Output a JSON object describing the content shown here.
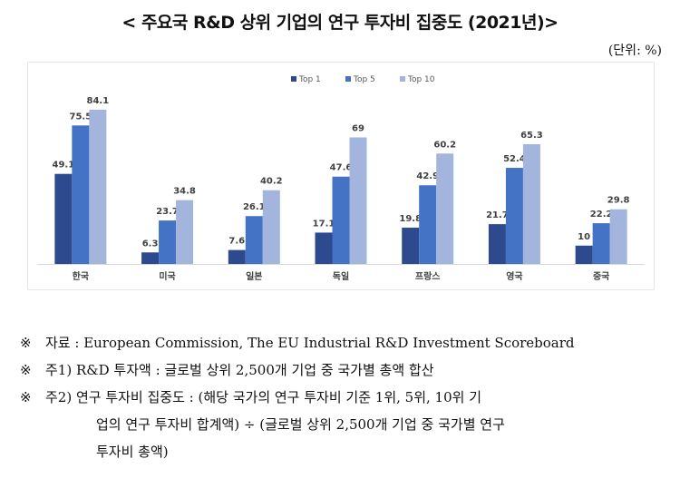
{
  "title": "< 주요국 R&D 상위 기업의 연구 투자비 집중도 (2021년)>",
  "unit": "(단위: %)",
  "chart_data": {
    "type": "bar",
    "categories": [
      "한국",
      "미국",
      "일본",
      "독일",
      "프랑스",
      "영국",
      "중국"
    ],
    "series": [
      {
        "name": "Top 1",
        "color": "#2e4a8e",
        "values": [
          49.1,
          6.3,
          7.6,
          17.1,
          19.8,
          21.7,
          10
        ]
      },
      {
        "name": "Top 5",
        "color": "#4472c4",
        "values": [
          75.5,
          23.7,
          26.1,
          47.6,
          42.9,
          52.4,
          22.2
        ]
      },
      {
        "name": "Top 10",
        "color": "#a3b5dc",
        "values": [
          84.1,
          34.8,
          40.2,
          69,
          60.2,
          65.3,
          29.8
        ]
      }
    ],
    "ylim": [
      0,
      90
    ],
    "legend": "top-center",
    "grid": false
  },
  "notes": [
    {
      "mark": "※",
      "label": "자료 ",
      "text": ": European Commission, The EU Industrial R&D Investment Scoreboard"
    },
    {
      "mark": "※",
      "label": "주1) ",
      "text": "R&D 투자액 : 글로벌 상위 2,500개 기업 중 국가별 총액 합산"
    },
    {
      "mark": "※",
      "label": "주2) ",
      "text": "연구 투자비 집중도 : (해당 국가의 연구 투자비 기준 1위, 5위, 10위 기",
      "text2": "업의 연구 투자비 합계액) ÷ (글로벌 상위 2,500개 기업 중 국가별 연구",
      "text3": "투자비 총액)"
    }
  ]
}
